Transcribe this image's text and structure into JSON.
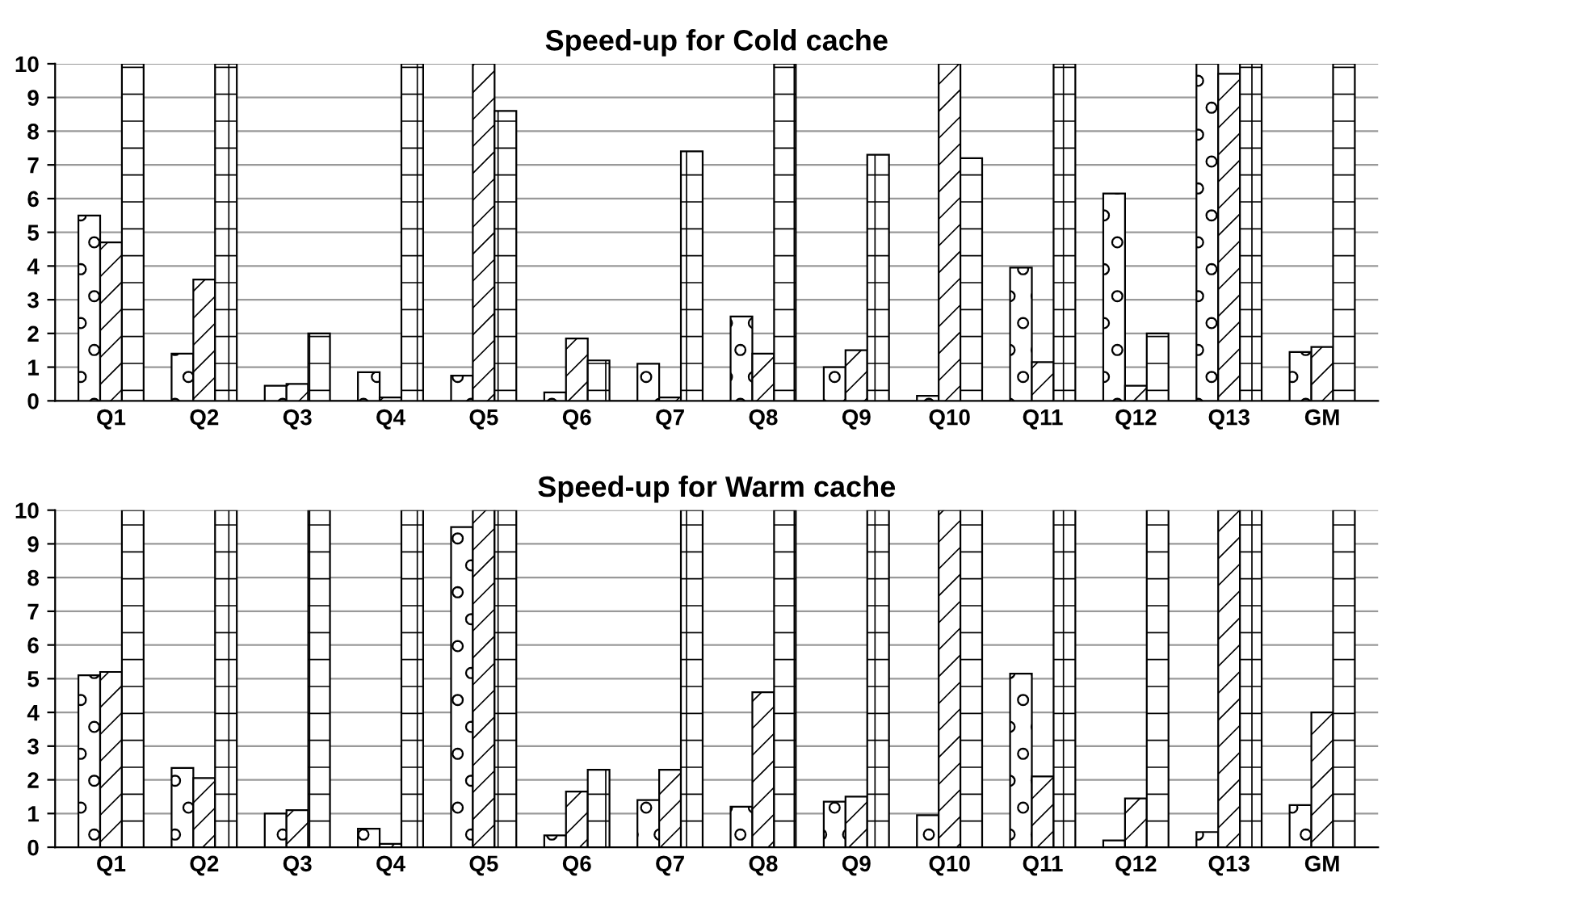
{
  "chart_data": [
    {
      "type": "bar",
      "title": "Speed-up for Cold cache",
      "categories": [
        "Q1",
        "Q2",
        "Q3",
        "Q4",
        "Q5",
        "Q6",
        "Q7",
        "Q8",
        "Q9",
        "Q10",
        "Q11",
        "Q12",
        "Q13",
        "GM"
      ],
      "series": [
        {
          "color": "#000000",
          "values": [
            5.5,
            1.4,
            0.45,
            0.85,
            0.75,
            0.25,
            1.1,
            2.5,
            1.0,
            0.15,
            3.95,
            6.15,
            10,
            1.45
          ]
        },
        {
          "color": "#000000",
          "values": [
            4.7,
            3.6,
            0.5,
            0.1,
            10,
            1.85,
            0.1,
            1.4,
            1.5,
            10,
            1.15,
            0.45,
            9.7,
            1.6
          ]
        },
        {
          "color": "#000000",
          "values": [
            10,
            10,
            2.0,
            10,
            8.6,
            1.2,
            7.4,
            10,
            7.3,
            7.2,
            10,
            2.0,
            10,
            10
          ]
        }
      ],
      "ylim": [
        0,
        10
      ],
      "yticks": [
        0,
        1,
        2,
        3,
        4,
        5,
        6,
        7,
        8,
        9,
        10
      ],
      "grid": "y"
    },
    {
      "type": "bar",
      "title": "Speed-up for Warm cache",
      "categories": [
        "Q1",
        "Q2",
        "Q3",
        "Q4",
        "Q5",
        "Q6",
        "Q7",
        "Q8",
        "Q9",
        "Q10",
        "Q11",
        "Q12",
        "Q13",
        "GM"
      ],
      "series": [
        {
          "color": "#000000",
          "values": [
            5.1,
            2.35,
            1.0,
            0.55,
            9.5,
            0.35,
            1.4,
            1.2,
            1.35,
            0.95,
            5.15,
            0.2,
            0.45,
            1.25
          ]
        },
        {
          "color": "#000000",
          "values": [
            5.2,
            2.05,
            1.1,
            0.1,
            10,
            1.65,
            2.3,
            4.6,
            1.5,
            10,
            2.1,
            1.45,
            10,
            4.0
          ]
        },
        {
          "color": "#000000",
          "values": [
            10,
            10,
            10,
            10,
            10,
            2.3,
            10,
            10,
            10,
            10,
            10,
            10,
            10,
            10
          ]
        }
      ],
      "ylim": [
        0,
        10
      ],
      "yticks": [
        0,
        1,
        2,
        3,
        4,
        5,
        6,
        7,
        8,
        9,
        10
      ],
      "grid": "y"
    }
  ]
}
